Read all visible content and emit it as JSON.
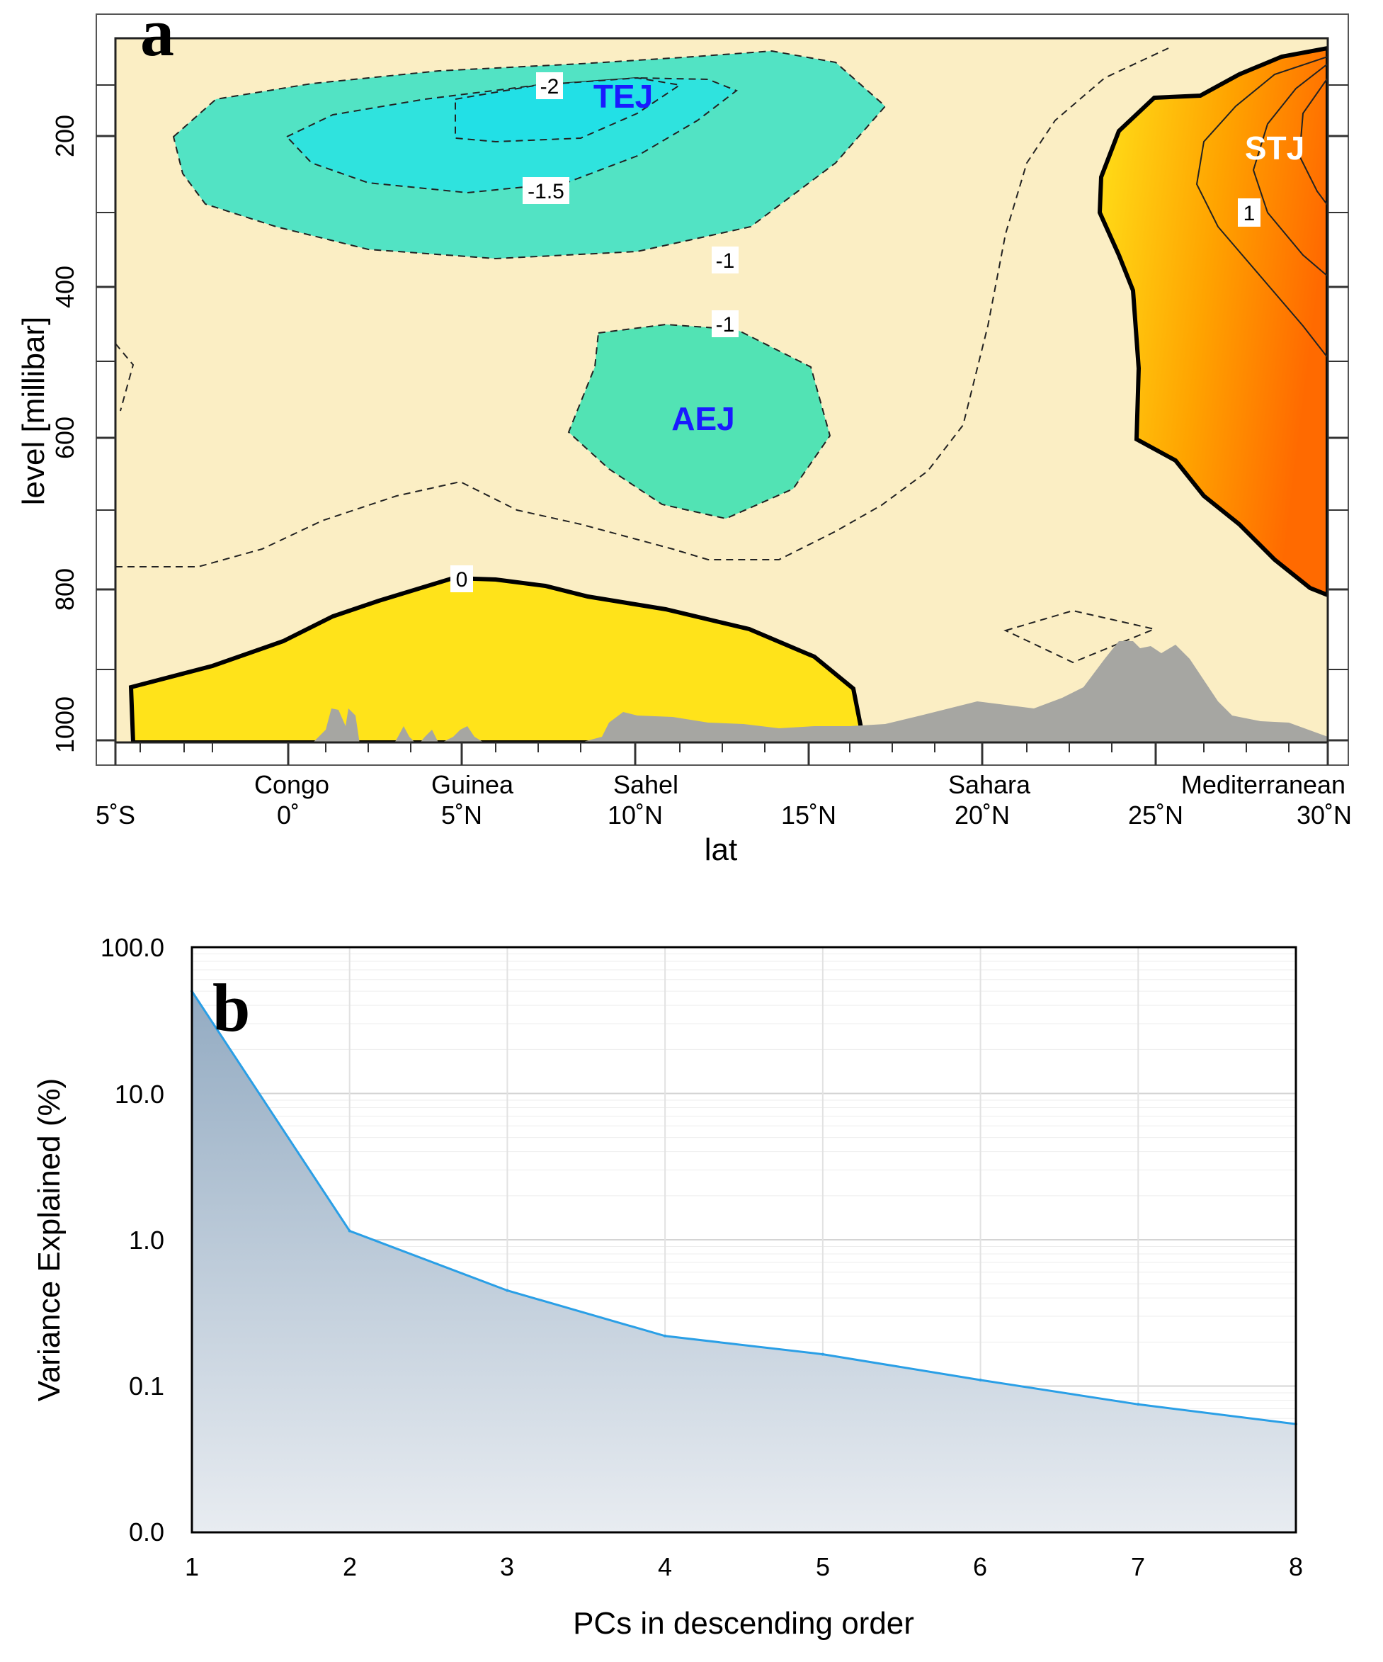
{
  "chart_data": [
    {
      "panel": "a",
      "type": "heatmap",
      "title": "",
      "xlabel": "lat",
      "ylabel": "level [millibar]",
      "x_ticks": [
        "5˚S",
        "0˚",
        "5˚N",
        "10˚N",
        "15˚N",
        "20˚N",
        "25˚N",
        "30˚N"
      ],
      "y_ticks": [
        "200",
        "400",
        "600",
        "800",
        "1000"
      ],
      "regions": [
        "Congo",
        "Guinea",
        "Sahel",
        "Sahara",
        "Mediterranean"
      ],
      "jets": [
        {
          "name": "TEJ",
          "color": "#1a1aff"
        },
        {
          "name": "AEJ",
          "color": "#1a1aff"
        },
        {
          "name": "STJ",
          "color": "#ffffff"
        }
      ],
      "contour_labels": [
        "-2",
        "-1.5",
        "-1",
        "-1",
        "0",
        "1"
      ],
      "colors": {
        "background": "#fbeec4",
        "negative": "#3ee0c0",
        "positive": "#ffe21a",
        "strong_positive": "#ff7a00",
        "terrain": "#a6a6a2"
      }
    },
    {
      "panel": "b",
      "type": "area",
      "title": "",
      "xlabel": "PCs in descending order",
      "ylabel": "Variance Explained (%)",
      "yscale": "log",
      "x": [
        1,
        2,
        3,
        4,
        5,
        6,
        7,
        8
      ],
      "values": [
        50,
        1.15,
        0.45,
        0.22,
        0.165,
        0.11,
        0.075,
        0.055
      ],
      "y_ticks": [
        "0.0",
        "0.1",
        "1.0",
        "10.0",
        "100.0"
      ],
      "x_ticks": [
        "1",
        "2",
        "3",
        "4",
        "5",
        "6",
        "7",
        "8"
      ],
      "line_color": "#2a9fe6",
      "fill_color_top": "#93abc2",
      "fill_color_bottom": "#e8ecf1"
    }
  ]
}
